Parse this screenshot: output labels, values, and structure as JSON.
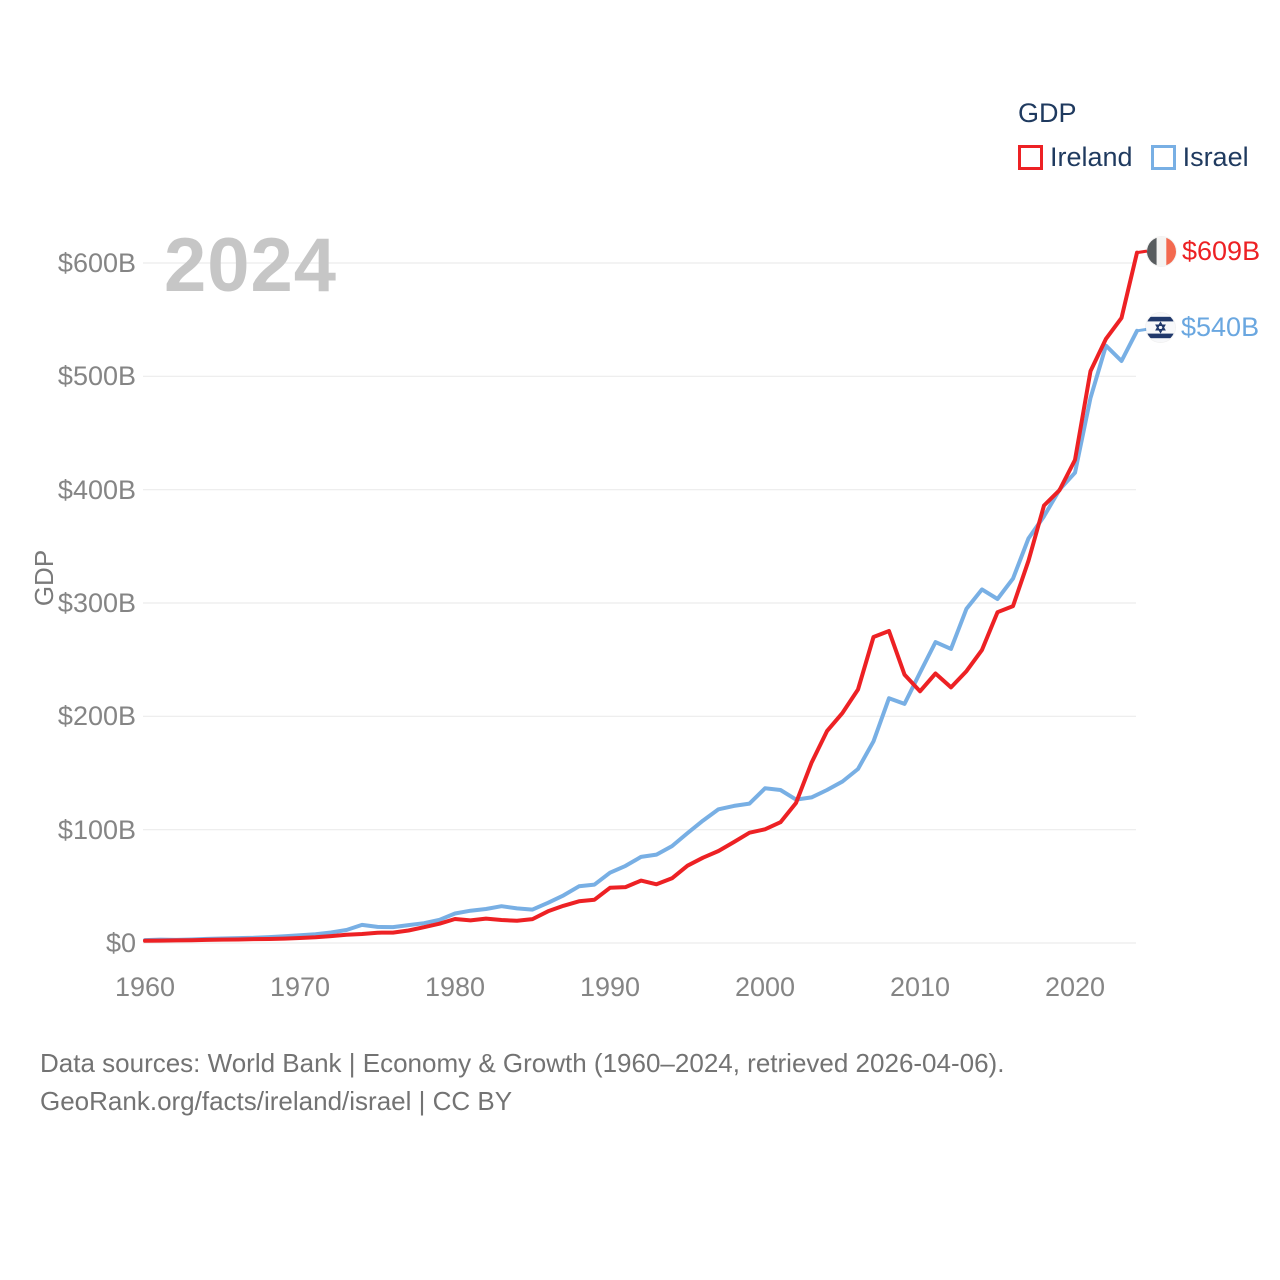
{
  "watermark": "2024",
  "legend": {
    "title": "GDP",
    "items": [
      {
        "label": "Ireland",
        "color": "#ed2124"
      },
      {
        "label": "Israel",
        "color": "#78afe4"
      }
    ]
  },
  "end_labels": [
    {
      "series": "Ireland",
      "value_label": "$609B",
      "color": "#ed2124",
      "flag_icon": "ireland-flag-icon"
    },
    {
      "series": "Israel",
      "value_label": "$540B",
      "color": "#6aa7e0",
      "flag_icon": "israel-flag-icon"
    }
  ],
  "footer": {
    "line1": "Data sources: World Bank | Economy & Growth (1960–2024, retrieved 2026-04-06).",
    "line2": "GeoRank.org/facts/ireland/israel | CC BY"
  },
  "chart_data": {
    "type": "line",
    "title": "GDP",
    "grid": "horizontal",
    "legend_position": "top-right",
    "xlim": [
      1960,
      2024
    ],
    "ylim": [
      0,
      620
    ],
    "y_axis": {
      "title": "GDP",
      "ticks": [
        {
          "label": "$0",
          "value": 0
        },
        {
          "label": "$100B",
          "value": 100
        },
        {
          "label": "$200B",
          "value": 200
        },
        {
          "label": "$300B",
          "value": 300
        },
        {
          "label": "$400B",
          "value": 400
        },
        {
          "label": "$500B",
          "value": 500
        },
        {
          "label": "$600B",
          "value": 600
        }
      ]
    },
    "x_axis": {
      "ticks": [
        {
          "label": "1960",
          "value": 1960
        },
        {
          "label": "1970",
          "value": 1970
        },
        {
          "label": "1980",
          "value": 1980
        },
        {
          "label": "1990",
          "value": 1990
        },
        {
          "label": "2000",
          "value": 2000
        },
        {
          "label": "2010",
          "value": 2010
        },
        {
          "label": "2020",
          "value": 2020
        }
      ]
    },
    "years": [
      1960,
      1961,
      1962,
      1963,
      1964,
      1965,
      1966,
      1967,
      1968,
      1969,
      1970,
      1971,
      1972,
      1973,
      1974,
      1975,
      1976,
      1977,
      1978,
      1979,
      1980,
      1981,
      1982,
      1983,
      1984,
      1985,
      1986,
      1987,
      1988,
      1989,
      1990,
      1991,
      1992,
      1993,
      1994,
      1995,
      1996,
      1997,
      1998,
      1999,
      2000,
      2001,
      2002,
      2003,
      2004,
      2005,
      2006,
      2007,
      2008,
      2009,
      2010,
      2011,
      2012,
      2013,
      2014,
      2015,
      2016,
      2017,
      2018,
      2019,
      2020,
      2021,
      2022,
      2023,
      2024
    ],
    "series": [
      {
        "name": "Israel",
        "color": "#78afe4",
        "unit": "billion USD",
        "values": [
          2.6,
          3.0,
          2.7,
          3.1,
          3.6,
          4.0,
          4.3,
          4.6,
          5.2,
          5.9,
          6.8,
          7.8,
          9.3,
          11.5,
          16.0,
          14.2,
          14.0,
          15.8,
          17.5,
          20.5,
          26.0,
          28.5,
          30.0,
          32.5,
          30.5,
          29.5,
          35.5,
          42.0,
          50.0,
          51.5,
          62.0,
          68.0,
          76.0,
          78.0,
          85.5,
          97.0,
          108.0,
          118.0,
          121.0,
          123.0,
          136.5,
          135.0,
          126.5,
          128.5,
          135.0,
          142.5,
          153.5,
          178.0,
          216.0,
          211.0,
          238.5,
          265.5,
          259.5,
          295.0,
          312.0,
          303.5,
          321.5,
          357.0,
          376.5,
          400.0,
          415.0,
          481.0,
          527.0,
          513.5,
          540.2
        ]
      },
      {
        "name": "Ireland",
        "color": "#ed2124",
        "unit": "billion USD",
        "values": [
          1.9,
          2.1,
          2.3,
          2.4,
          2.7,
          3.0,
          3.1,
          3.4,
          3.5,
          3.9,
          4.4,
          5.0,
          6.1,
          7.2,
          7.9,
          9.1,
          9.2,
          11.0,
          13.9,
          17.0,
          21.2,
          19.9,
          21.5,
          20.3,
          19.6,
          21.1,
          28.0,
          32.8,
          36.8,
          38.2,
          48.7,
          49.3,
          55.1,
          51.8,
          57.1,
          68.2,
          75.3,
          81.2,
          89.1,
          97.3,
          100.3,
          106.6,
          123.5,
          159.0,
          187.0,
          203.0,
          223.7,
          270.0,
          275.3,
          236.8,
          222.1,
          237.8,
          225.5,
          239.9,
          258.6,
          291.9,
          297.3,
          337.3,
          386.0,
          399.5,
          426.3,
          504.6,
          533.1,
          551.6,
          609.2
        ]
      }
    ]
  }
}
